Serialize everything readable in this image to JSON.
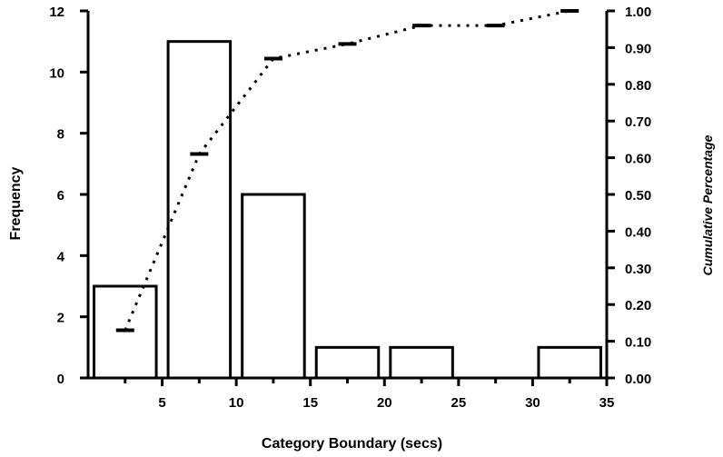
{
  "chart_data": {
    "type": "bar",
    "xlabel": "Category Boundary (secs)",
    "ylabel": "Frequency",
    "y2label": "Cumulative Percentage",
    "xlim": [
      0,
      35
    ],
    "ylim": [
      0,
      12
    ],
    "y2lim": [
      0,
      1.0
    ],
    "x_ticks": [
      "5",
      "10",
      "15",
      "20",
      "25",
      "30",
      "35"
    ],
    "y_ticks": [
      "0",
      "2",
      "4",
      "6",
      "8",
      "10",
      "12"
    ],
    "y2_ticks": [
      "0.00",
      "0.10",
      "0.20",
      "0.30",
      "0.40",
      "0.50",
      "0.60",
      "0.70",
      "0.80",
      "0.90",
      "1.00"
    ],
    "grid": false,
    "series": [
      {
        "type": "bar",
        "axis": "left",
        "x": [
          2.5,
          7.5,
          12.5,
          17.5,
          22.5,
          27.5,
          32.5
        ],
        "values": [
          3,
          11,
          6,
          1,
          1,
          0,
          1
        ]
      },
      {
        "type": "line",
        "axis": "right",
        "style": "dotted",
        "x": [
          2.5,
          7.5,
          12.5,
          17.5,
          22.5,
          27.5,
          32.5
        ],
        "values": [
          0.13,
          0.61,
          0.87,
          0.91,
          0.96,
          0.96,
          1.0
        ]
      }
    ],
    "colors": {
      "bar_fill": "#ffffff",
      "bar_stroke": "#000000",
      "line": "#000000"
    }
  }
}
